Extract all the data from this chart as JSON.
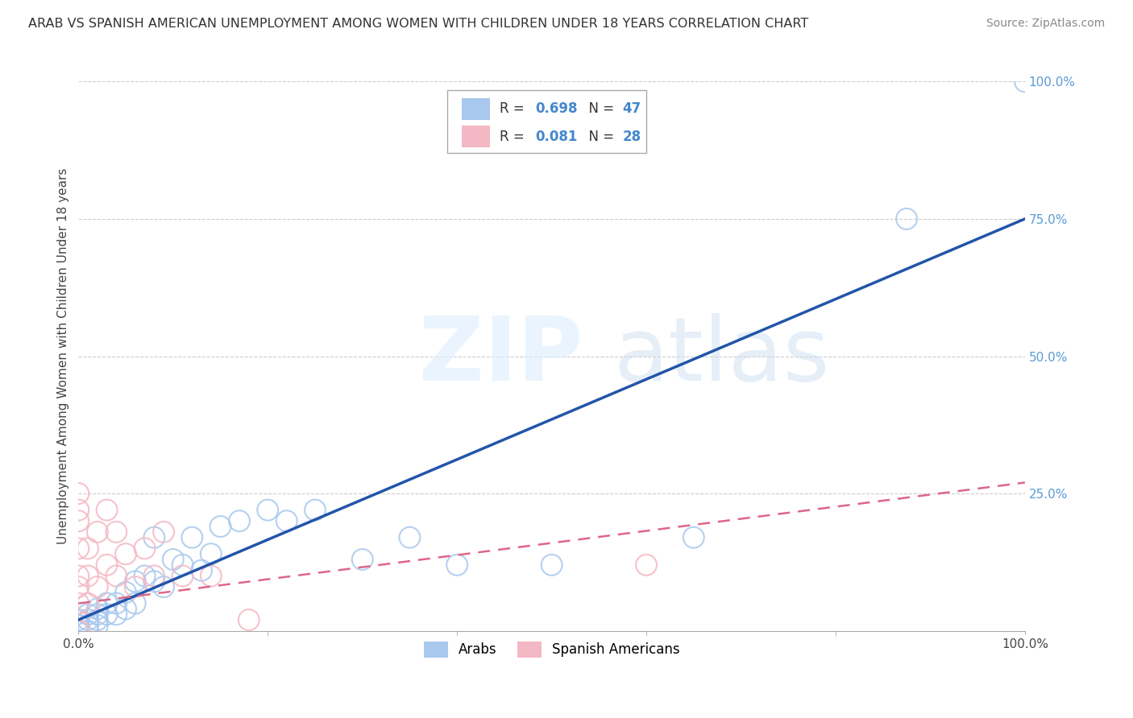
{
  "title": "ARAB VS SPANISH AMERICAN UNEMPLOYMENT AMONG WOMEN WITH CHILDREN UNDER 18 YEARS CORRELATION CHART",
  "source": "Source: ZipAtlas.com",
  "ylabel": "Unemployment Among Women with Children Under 18 years",
  "xlim": [
    0,
    1.0
  ],
  "ylim": [
    0,
    1.0
  ],
  "ytick_labels_right": [
    "100.0%",
    "75.0%",
    "50.0%",
    "25.0%",
    ""
  ],
  "ytick_positions_right": [
    1.0,
    0.75,
    0.5,
    0.25,
    0.0
  ],
  "arab_R": 0.698,
  "arab_N": 47,
  "spanish_R": 0.081,
  "spanish_N": 28,
  "legend_label_1": "Arabs",
  "legend_label_2": "Spanish Americans",
  "arab_color": "#a8c8ee",
  "spanish_color": "#f4b8c4",
  "arab_line_color": "#2255aa",
  "spanish_line_color": "#dd6688",
  "watermark_zip": "ZIP",
  "watermark_atlas": "atlas",
  "arab_x": [
    0.0,
    0.0,
    0.0,
    0.0,
    0.0,
    0.0,
    0.0,
    0.0,
    0.0,
    0.0,
    0.01,
    0.01,
    0.01,
    0.01,
    0.02,
    0.02,
    0.02,
    0.02,
    0.03,
    0.03,
    0.04,
    0.04,
    0.05,
    0.05,
    0.06,
    0.06,
    0.07,
    0.08,
    0.08,
    0.09,
    0.1,
    0.11,
    0.12,
    0.13,
    0.14,
    0.15,
    0.17,
    0.2,
    0.22,
    0.25,
    0.3,
    0.35,
    0.4,
    0.5,
    0.65,
    0.875,
    1.0
  ],
  "arab_y": [
    0.0,
    0.0,
    0.0,
    0.0,
    0.0,
    0.0,
    0.0,
    0.01,
    0.01,
    0.02,
    0.0,
    0.01,
    0.02,
    0.03,
    0.01,
    0.02,
    0.03,
    0.04,
    0.03,
    0.05,
    0.03,
    0.05,
    0.04,
    0.07,
    0.05,
    0.09,
    0.1,
    0.09,
    0.17,
    0.08,
    0.13,
    0.12,
    0.17,
    0.11,
    0.14,
    0.19,
    0.2,
    0.22,
    0.2,
    0.22,
    0.13,
    0.17,
    0.12,
    0.12,
    0.17,
    0.75,
    1.0
  ],
  "spanish_x": [
    0.0,
    0.0,
    0.0,
    0.0,
    0.0,
    0.0,
    0.0,
    0.0,
    0.0,
    0.0,
    0.01,
    0.01,
    0.01,
    0.02,
    0.02,
    0.03,
    0.03,
    0.04,
    0.04,
    0.05,
    0.06,
    0.07,
    0.08,
    0.09,
    0.11,
    0.14,
    0.18,
    0.6
  ],
  "spanish_y": [
    0.0,
    0.0,
    0.0,
    0.05,
    0.08,
    0.1,
    0.15,
    0.2,
    0.22,
    0.25,
    0.05,
    0.1,
    0.15,
    0.08,
    0.18,
    0.12,
    0.22,
    0.1,
    0.18,
    0.14,
    0.08,
    0.15,
    0.1,
    0.18,
    0.1,
    0.1,
    0.02,
    0.12
  ],
  "arab_line_x0": 0.0,
  "arab_line_y0": 0.02,
  "arab_line_x1": 1.0,
  "arab_line_y1": 0.75,
  "spanish_line_x0": 0.0,
  "spanish_line_y0": 0.05,
  "spanish_line_x1": 1.0,
  "spanish_line_y1": 0.27
}
